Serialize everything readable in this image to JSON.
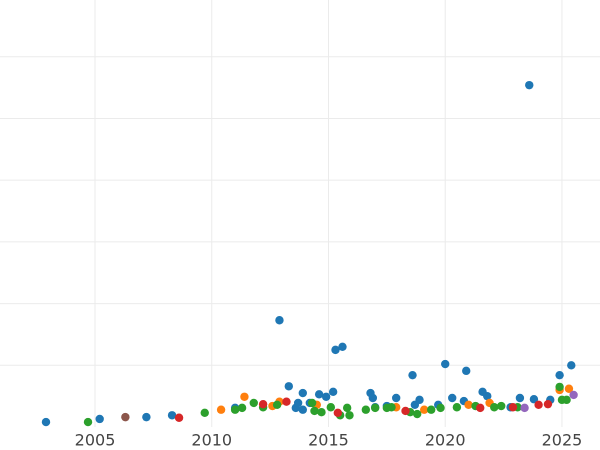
{
  "chart_data": {
    "type": "scatter",
    "xlim": [
      2000.93,
      2026.63
    ],
    "ylim": [
      0,
      6.92
    ],
    "xticks": [
      2005,
      2010,
      2015,
      2020,
      2025
    ],
    "ygrid": [
      1,
      2,
      3,
      4,
      5,
      6
    ],
    "grid": true,
    "series": [
      {
        "color": "#1f77b4",
        "x": [
          2002.9,
          2005.2,
          2007.2,
          2008.3,
          2011.0,
          2012.9,
          2013.3,
          2013.6,
          2013.7,
          2013.9,
          2013.9,
          2014.2,
          2014.6,
          2014.9,
          2015.2,
          2015.3,
          2015.6,
          2016.8,
          2016.9,
          2017.0,
          2017.5,
          2017.9,
          2018.6,
          2018.7,
          2018.9,
          2019.7,
          2020.0,
          2020.3,
          2020.8,
          2020.9,
          2021.6,
          2021.8,
          2022.8,
          2023.2,
          2023.6,
          2023.8,
          2024.5,
          2024.9,
          2025.4
        ],
        "y": [
          0.08,
          0.13,
          0.16,
          0.19,
          0.31,
          1.73,
          0.66,
          0.31,
          0.39,
          0.55,
          0.28,
          0.39,
          0.53,
          0.49,
          0.57,
          1.25,
          1.3,
          0.55,
          0.47,
          0.32,
          0.34,
          0.47,
          0.84,
          0.36,
          0.44,
          0.36,
          1.02,
          0.47,
          0.42,
          0.91,
          0.57,
          0.5,
          0.32,
          0.47,
          5.54,
          0.45,
          0.44,
          0.84,
          1.0
        ]
      },
      {
        "color": "#ff7f0e",
        "x": [
          2010.4,
          2011.4,
          2012.6,
          2012.9,
          2014.5,
          2017.9,
          2019.1,
          2021.0,
          2021.9,
          2024.9,
          2025.3
        ],
        "y": [
          0.28,
          0.49,
          0.34,
          0.41,
          0.36,
          0.32,
          0.28,
          0.36,
          0.39,
          0.6,
          0.62
        ]
      },
      {
        "color": "#2ca02c",
        "x": [
          2004.7,
          2009.7,
          2011.0,
          2011.3,
          2011.8,
          2012.2,
          2012.8,
          2014.3,
          2014.4,
          2014.7,
          2015.1,
          2015.5,
          2015.8,
          2015.9,
          2016.6,
          2017.0,
          2017.5,
          2017.7,
          2018.5,
          2018.8,
          2019.4,
          2019.8,
          2020.5,
          2021.3,
          2022.1,
          2022.4,
          2023.1,
          2024.9,
          2025.0,
          2025.2
        ],
        "y": [
          0.08,
          0.23,
          0.28,
          0.31,
          0.39,
          0.32,
          0.36,
          0.39,
          0.26,
          0.24,
          0.32,
          0.19,
          0.31,
          0.19,
          0.28,
          0.31,
          0.31,
          0.32,
          0.24,
          0.21,
          0.28,
          0.31,
          0.32,
          0.34,
          0.32,
          0.34,
          0.32,
          0.65,
          0.44,
          0.44
        ]
      },
      {
        "color": "#d62728",
        "x": [
          2008.6,
          2012.2,
          2013.2,
          2015.4,
          2018.3,
          2021.5,
          2022.9,
          2024.0,
          2024.4
        ],
        "y": [
          0.15,
          0.37,
          0.41,
          0.23,
          0.26,
          0.31,
          0.32,
          0.36,
          0.37
        ]
      },
      {
        "color": "#9467bd",
        "x": [
          2023.4,
          2025.5
        ],
        "y": [
          0.31,
          0.52
        ]
      },
      {
        "color": "#8c564b",
        "x": [
          2006.3
        ],
        "y": [
          0.16
        ]
      }
    ]
  }
}
